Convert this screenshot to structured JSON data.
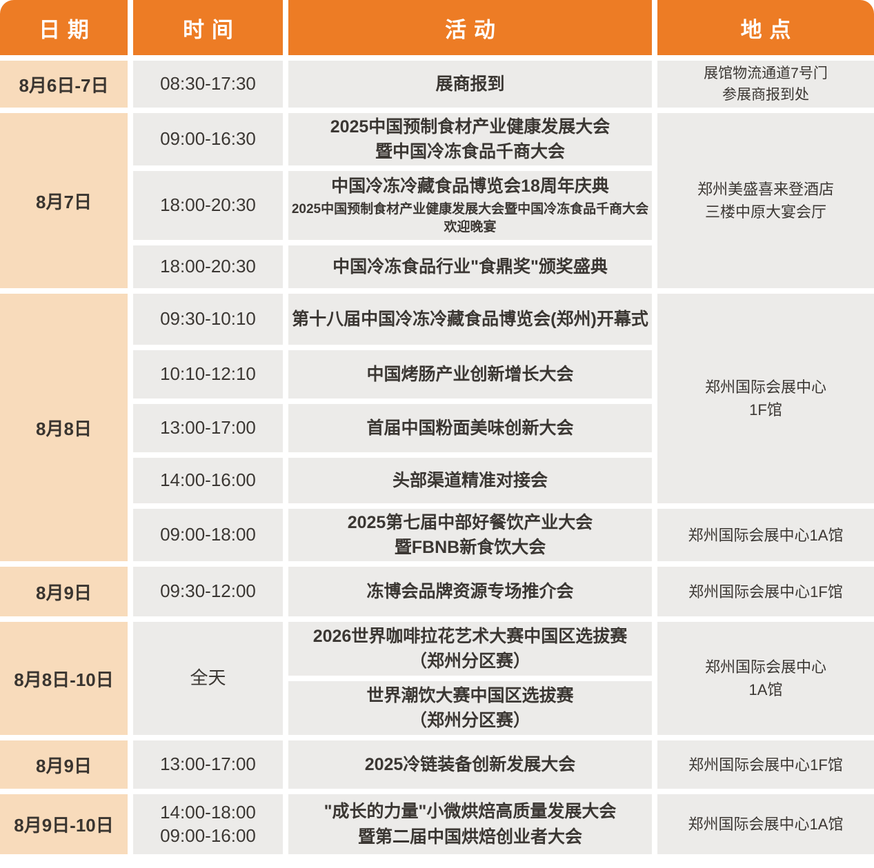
{
  "colors": {
    "header_orange": "#ED7C25",
    "date_cell_peach": "#F8DBBB",
    "event_cell_gray": "#ECEBE9",
    "text_dark": "#3B3733"
  },
  "header": {
    "date": "日期",
    "time": "时间",
    "activity": "活动",
    "location": "地点"
  },
  "schedule": [
    {
      "date": "8月6日-7日",
      "location": "展馆物流通道7号门\n参展商报到处",
      "events": [
        {
          "time": "08:30-17:30",
          "title": "展商报到"
        }
      ]
    },
    {
      "date": "8月7日",
      "location": "郑州美盛喜来登酒店\n三楼中原大宴会厅",
      "events": [
        {
          "time": "09:00-16:30",
          "title": "2025中国预制食材产业健康发展大会\n暨中国冷冻食品千商大会"
        },
        {
          "time": "18:00-20:30",
          "title": "中国冷冻冷藏食品博览会18周年庆典",
          "subtitle": "2025中国预制食材产业健康发展大会暨中国冷冻食品千商大会\n欢迎晚宴"
        },
        {
          "time": "18:00-20:30",
          "title": "中国冷冻食品行业\"食鼎奖\"颁奖盛典"
        }
      ]
    },
    {
      "date": "8月8日",
      "location": "郑州国际会展中心\n1F馆",
      "events": [
        {
          "time": "09:30-10:10",
          "title": "第十八届中国冷冻冷藏食品博览会(郑州)开幕式"
        },
        {
          "time": "10:10-12:10",
          "title": "中国烤肠产业创新增长大会"
        },
        {
          "time": "13:00-17:00",
          "title": "首届中国粉面美味创新大会"
        },
        {
          "time": "14:00-16:00",
          "title": "头部渠道精准对接会"
        },
        {
          "time": "09:00-18:00",
          "title": "2025第七届中部好餐饮产业大会\n暨FBNB新食饮大会",
          "location": "郑州国际会展中心1A馆"
        }
      ]
    },
    {
      "date": "8月9日",
      "location": "郑州国际会展中心1F馆",
      "events": [
        {
          "time": "09:30-12:00",
          "title": "冻博会品牌资源专场推介会"
        }
      ]
    },
    {
      "date": "8月8日-10日",
      "time": "全天",
      "location": "郑州国际会展中心\n1A馆",
      "events": [
        {
          "title": "2026世界咖啡拉花艺术大赛中国区选拔赛\n（郑州分区赛）"
        },
        {
          "title": "世界潮饮大赛中国区选拔赛\n（郑州分区赛）"
        }
      ]
    },
    {
      "date": "8月9日",
      "location": "郑州国际会展中心1F馆",
      "events": [
        {
          "time": "13:00-17:00",
          "title": "2025冷链装备创新发展大会"
        }
      ]
    },
    {
      "date": "8月9日-10日",
      "location": "郑州国际会展中心1A馆",
      "events": [
        {
          "time": "14:00-18:00\n09:00-16:00",
          "title": "\"成长的力量\"小微烘焙高质量发展大会\n暨第二届中国烘焙创业者大会"
        }
      ]
    }
  ]
}
